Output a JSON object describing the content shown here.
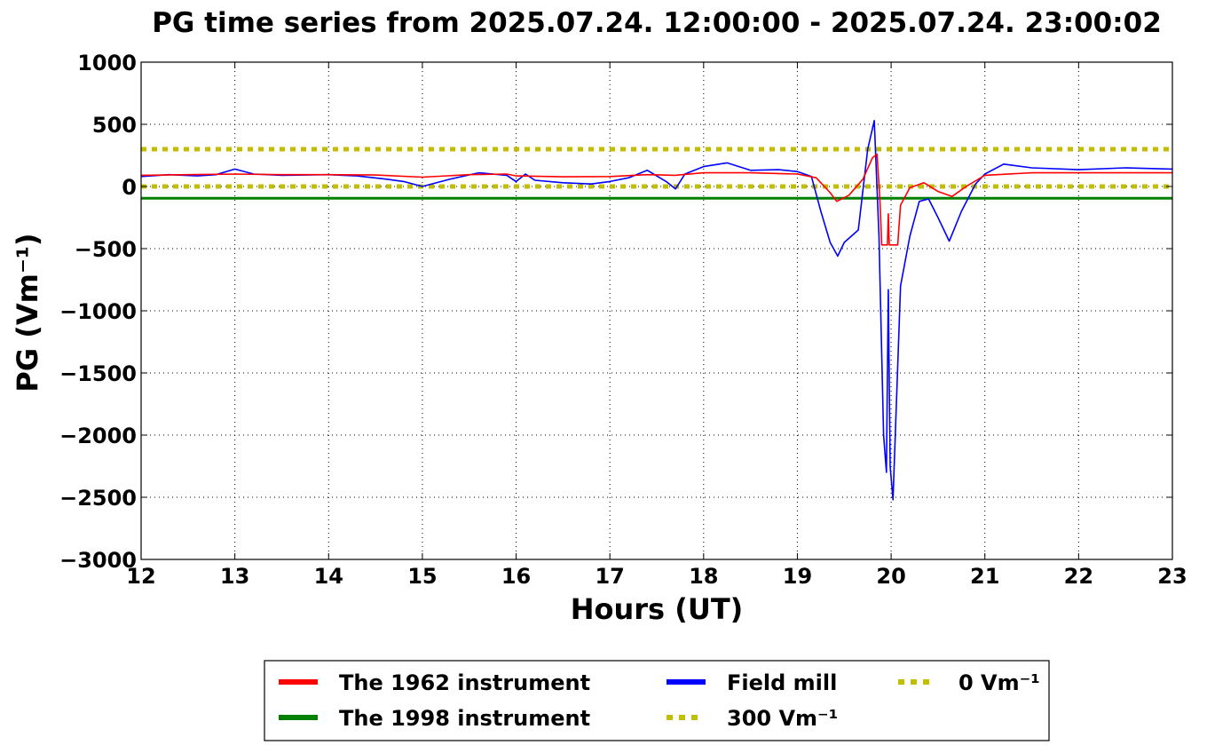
{
  "chart_data": {
    "type": "line",
    "title": "PG time series from 2025.07.24. 12:00:00 - 2025.07.24. 23:00:02",
    "xlabel": "Hours (UT)",
    "ylabel": "PG (Vm⁻¹)",
    "xlim": [
      12,
      23
    ],
    "ylim": [
      -3000,
      1000
    ],
    "x_ticks": [
      12,
      13,
      14,
      15,
      16,
      17,
      18,
      19,
      20,
      21,
      22,
      23
    ],
    "y_ticks": [
      1000,
      500,
      0,
      -500,
      -1000,
      -1500,
      -2000,
      -2500,
      -3000
    ],
    "y_tick_labels": [
      "1000",
      "500",
      "0",
      "−500",
      "−1000",
      "−1500",
      "−2000",
      "−2500",
      "−3000"
    ],
    "grid": true,
    "legend_placement": "below chart, centered",
    "series": [
      {
        "name": "The 1962 instrument",
        "color": "#ff0000",
        "style": "solid-thin",
        "points": [
          [
            12.0,
            90
          ],
          [
            12.5,
            95
          ],
          [
            13.0,
            100
          ],
          [
            13.5,
            95
          ],
          [
            14.0,
            95
          ],
          [
            14.5,
            92
          ],
          [
            15.0,
            75
          ],
          [
            15.5,
            95
          ],
          [
            15.9,
            100
          ],
          [
            16.0,
            85
          ],
          [
            16.5,
            78
          ],
          [
            17.0,
            80
          ],
          [
            17.4,
            95
          ],
          [
            17.7,
            90
          ],
          [
            18.0,
            110
          ],
          [
            18.5,
            110
          ],
          [
            19.0,
            100
          ],
          [
            19.2,
            70
          ],
          [
            19.35,
            -50
          ],
          [
            19.42,
            -120
          ],
          [
            19.55,
            -70
          ],
          [
            19.7,
            60
          ],
          [
            19.8,
            230
          ],
          [
            19.85,
            260
          ],
          [
            19.88,
            -100
          ],
          [
            19.9,
            -470
          ],
          [
            19.96,
            -470
          ],
          [
            19.97,
            -220
          ],
          [
            19.98,
            -470
          ],
          [
            20.07,
            -470
          ],
          [
            20.1,
            -150
          ],
          [
            20.2,
            -10
          ],
          [
            20.35,
            30
          ],
          [
            20.5,
            -40
          ],
          [
            20.65,
            -80
          ],
          [
            20.8,
            0
          ],
          [
            21.0,
            90
          ],
          [
            21.5,
            110
          ],
          [
            22.0,
            110
          ],
          [
            22.5,
            110
          ],
          [
            23.0,
            110
          ]
        ]
      },
      {
        "name": "The 1998 instrument",
        "color": "#008000",
        "style": "solid",
        "points": [
          [
            12.0,
            -95
          ],
          [
            23.0,
            -95
          ]
        ]
      },
      {
        "name": "Field mill",
        "color": "#0000ff",
        "style": "solid-thin",
        "points": [
          [
            12.0,
            80
          ],
          [
            12.3,
            95
          ],
          [
            12.6,
            85
          ],
          [
            12.8,
            95
          ],
          [
            13.0,
            140
          ],
          [
            13.2,
            100
          ],
          [
            13.5,
            90
          ],
          [
            14.0,
            95
          ],
          [
            14.3,
            85
          ],
          [
            14.6,
            60
          ],
          [
            14.8,
            40
          ],
          [
            15.0,
            0
          ],
          [
            15.3,
            60
          ],
          [
            15.6,
            110
          ],
          [
            15.9,
            90
          ],
          [
            16.0,
            40
          ],
          [
            16.1,
            100
          ],
          [
            16.2,
            50
          ],
          [
            16.5,
            30
          ],
          [
            16.8,
            20
          ],
          [
            17.0,
            40
          ],
          [
            17.2,
            70
          ],
          [
            17.4,
            130
          ],
          [
            17.6,
            40
          ],
          [
            17.7,
            -20
          ],
          [
            17.8,
            100
          ],
          [
            18.0,
            160
          ],
          [
            18.25,
            190
          ],
          [
            18.5,
            130
          ],
          [
            18.8,
            135
          ],
          [
            19.0,
            120
          ],
          [
            19.15,
            80
          ],
          [
            19.25,
            -200
          ],
          [
            19.35,
            -450
          ],
          [
            19.43,
            -560
          ],
          [
            19.5,
            -450
          ],
          [
            19.65,
            -350
          ],
          [
            19.75,
            300
          ],
          [
            19.82,
            530
          ],
          [
            19.87,
            -400
          ],
          [
            19.92,
            -2000
          ],
          [
            19.95,
            -2300
          ],
          [
            19.97,
            -830
          ],
          [
            19.99,
            -2250
          ],
          [
            20.02,
            -2520
          ],
          [
            20.1,
            -800
          ],
          [
            20.2,
            -400
          ],
          [
            20.3,
            -120
          ],
          [
            20.4,
            -100
          ],
          [
            20.5,
            -250
          ],
          [
            20.62,
            -440
          ],
          [
            20.75,
            -200
          ],
          [
            20.9,
            20
          ],
          [
            21.0,
            100
          ],
          [
            21.2,
            180
          ],
          [
            21.5,
            150
          ],
          [
            22.0,
            135
          ],
          [
            22.5,
            150
          ],
          [
            23.0,
            140
          ]
        ]
      },
      {
        "name": "300 Vm⁻¹",
        "color": "#bfbf00",
        "style": "dotted",
        "points": [
          [
            12.0,
            300
          ],
          [
            23.0,
            300
          ]
        ]
      },
      {
        "name": "0 Vm⁻¹",
        "color": "#bfbf00",
        "style": "dotted",
        "points": [
          [
            12.0,
            0
          ],
          [
            23.0,
            0
          ]
        ]
      }
    ],
    "legend": [
      {
        "label": "The 1962 instrument",
        "color": "#ff0000",
        "style": "solid"
      },
      {
        "label": "The 1998 instrument",
        "color": "#008000",
        "style": "solid"
      },
      {
        "label": "Field mill",
        "color": "#0000ff",
        "style": "solid"
      },
      {
        "label": "300 Vm⁻¹",
        "color": "#bfbf00",
        "style": "dotted"
      },
      {
        "label": "0 Vm⁻¹",
        "color": "#bfbf00",
        "style": "dotted"
      }
    ]
  }
}
